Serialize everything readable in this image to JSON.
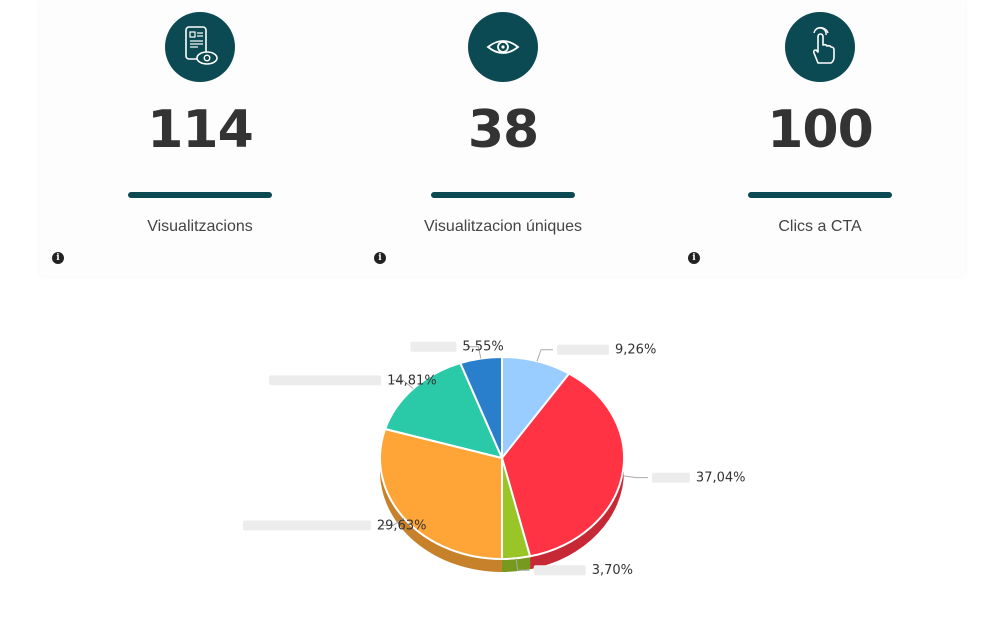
{
  "stats": [
    {
      "value": "114",
      "label": "Visualitzacions",
      "icon": "phone-view-icon"
    },
    {
      "value": "38",
      "label": "Visualitzacion úniques",
      "icon": "eye-icon"
    },
    {
      "value": "100",
      "label": "Clics a CTA",
      "icon": "touch-finger-icon"
    }
  ],
  "info_glyph": "i",
  "colors": {
    "accent": "#0b4a52"
  },
  "chart_data": {
    "type": "pie",
    "title": "",
    "slices": [
      {
        "label": "9,26%",
        "value": 9.26,
        "color": "#99ccff"
      },
      {
        "label": "37,04%",
        "value": 37.04,
        "color": "#ff3344"
      },
      {
        "label": "3,70%",
        "value": 3.7,
        "color": "#99c526"
      },
      {
        "label": "29,63%",
        "value": 29.63,
        "color": "#ffa537"
      },
      {
        "label": "14,81%",
        "value": 14.81,
        "color": "#2ac9a8"
      },
      {
        "label": "5,55%",
        "value": 5.55,
        "color": "#2a7fcc"
      }
    ],
    "legend": "none"
  }
}
